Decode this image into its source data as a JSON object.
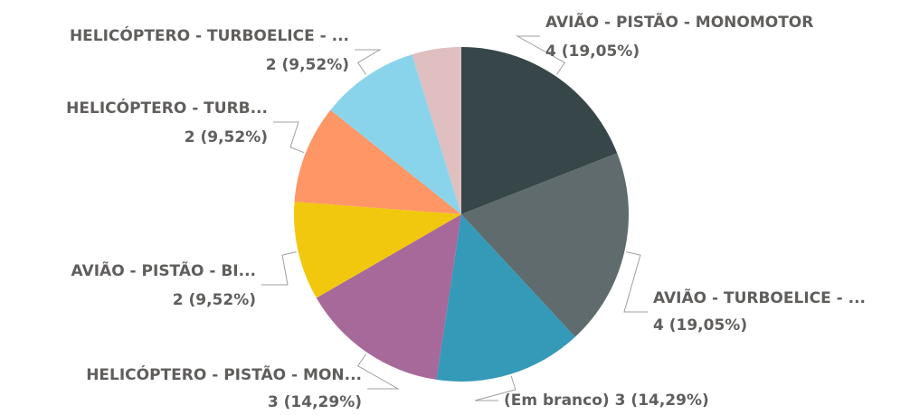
{
  "chart_data": {
    "type": "pie",
    "categories": [
      "AVIÃO - PISTÃO - MONOMOTOR",
      "AVIÃO - TURBOELICE - ...",
      "(Em branco)",
      "HELICÓPTERO - PISTÃO - MON...",
      "AVIÃO - PISTÃO - BI...",
      "HELICÓPTERO - TURB...",
      "HELICÓPTERO - TURBOELICE - ...",
      null
    ],
    "values": [
      4,
      4,
      3,
      3,
      2,
      2,
      2,
      1
    ],
    "value_labels": [
      "4 (19,05%)",
      "4 (19,05%)",
      "3 (14,29%)",
      "3 (14,29%)",
      "2 (9,52%)",
      "2 (9,52%)",
      "2 (9,52%)",
      null
    ],
    "colors": [
      "#374649",
      "#5f6b6d",
      "#3599b8",
      "#a66999",
      "#f2c80f",
      "#fe9666",
      "#8ad4eb",
      "#dfbfbf"
    ]
  }
}
